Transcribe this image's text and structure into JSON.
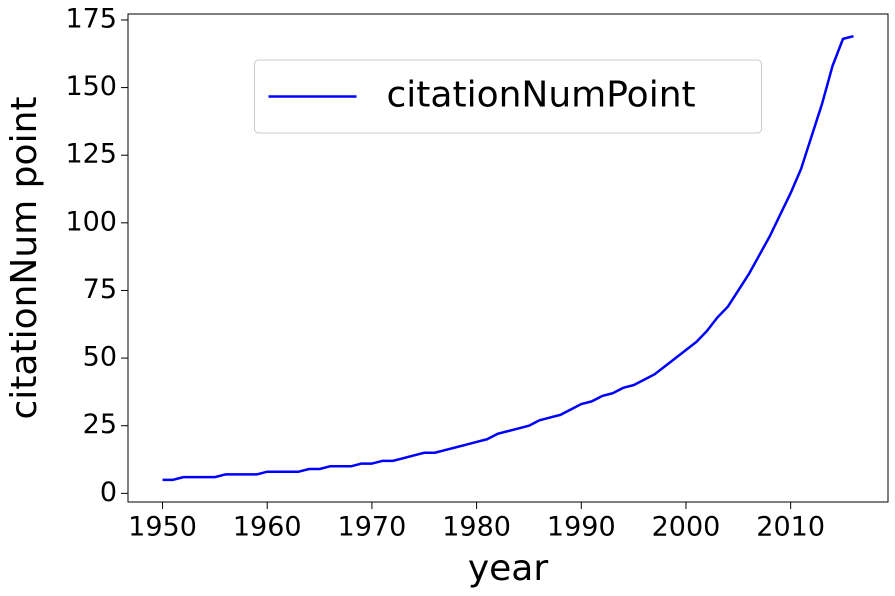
{
  "chart_data": {
    "type": "line",
    "x": [
      1950,
      1951,
      1952,
      1953,
      1954,
      1955,
      1956,
      1957,
      1958,
      1959,
      1960,
      1961,
      1962,
      1963,
      1964,
      1965,
      1966,
      1967,
      1968,
      1969,
      1970,
      1971,
      1972,
      1973,
      1974,
      1975,
      1976,
      1977,
      1978,
      1979,
      1980,
      1981,
      1982,
      1983,
      1984,
      1985,
      1986,
      1987,
      1988,
      1989,
      1990,
      1991,
      1992,
      1993,
      1994,
      1995,
      1996,
      1997,
      1998,
      1999,
      2000,
      2001,
      2002,
      2003,
      2004,
      2005,
      2006,
      2007,
      2008,
      2009,
      2010,
      2011,
      2012,
      2013,
      2014,
      2015,
      2016
    ],
    "series": [
      {
        "name": "citationNumPoint",
        "color": "#0000ff",
        "values": [
          5,
          5,
          6,
          6,
          6,
          6,
          7,
          7,
          7,
          7,
          8,
          8,
          8,
          8,
          9,
          9,
          10,
          10,
          10,
          11,
          11,
          12,
          12,
          13,
          14,
          15,
          15,
          16,
          17,
          18,
          19,
          20,
          22,
          23,
          24,
          25,
          27,
          28,
          29,
          31,
          33,
          34,
          36,
          37,
          39,
          40,
          42,
          44,
          47,
          50,
          53,
          56,
          60,
          65,
          69,
          75,
          81,
          88,
          95,
          103,
          111,
          120,
          132,
          144,
          158,
          168,
          169
        ]
      }
    ],
    "x_label": "year",
    "y_label": "citationNum point",
    "xlim": [
      1946.7,
      2019.3
    ],
    "ylim": [
      -3.2,
      177.2
    ],
    "xticks": [
      1950,
      1960,
      1970,
      1980,
      1990,
      2000,
      2010
    ],
    "yticks": [
      0,
      25,
      50,
      75,
      100,
      125,
      150,
      175
    ],
    "legend": "upper center",
    "grid": false
  }
}
